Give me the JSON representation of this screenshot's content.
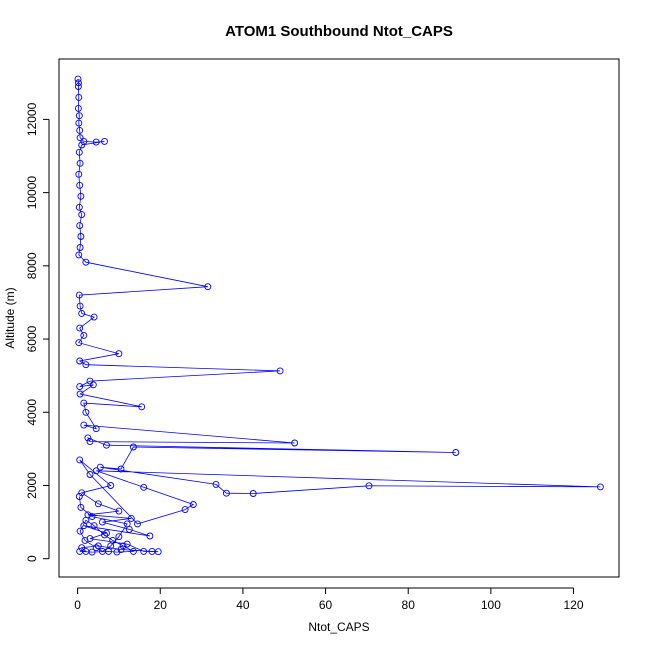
{
  "chart_data": {
    "type": "line",
    "title": "ATOM1 Southbound Ntot_CAPS",
    "xlabel": "Ntot_CAPS",
    "ylabel": "Altitude (m)",
    "xlim": [
      -4.5,
      131
    ],
    "ylim": [
      -500,
      13650
    ],
    "xticks": [
      0,
      20,
      40,
      60,
      80,
      100,
      120
    ],
    "yticks": [
      0,
      2000,
      4000,
      6000,
      8000,
      10000,
      12000
    ],
    "xtick_labels": [
      "0",
      "20",
      "40",
      "60",
      "80",
      "100",
      "120"
    ],
    "ytick_labels": [
      "0",
      "2000",
      "4000",
      "6000",
      "8000",
      "10000",
      "12000"
    ],
    "grid": false,
    "legend": false,
    "series": [
      {
        "color": "#0000ff",
        "marker": "open-circle",
        "points": [
          [
            0.1,
            13100
          ],
          [
            0.2,
            13000
          ],
          [
            0.2,
            12900
          ],
          [
            0.3,
            12600
          ],
          [
            0.2,
            12300
          ],
          [
            0.4,
            12100
          ],
          [
            0.3,
            11900
          ],
          [
            0.5,
            11700
          ],
          [
            0.6,
            11500
          ],
          [
            1.5,
            11400
          ],
          [
            4.5,
            11380
          ],
          [
            6.5,
            11400
          ],
          [
            1.0,
            11300
          ],
          [
            0.4,
            11100
          ],
          [
            0.6,
            10800
          ],
          [
            0.3,
            10500
          ],
          [
            0.5,
            10200
          ],
          [
            0.8,
            9900
          ],
          [
            0.4,
            9600
          ],
          [
            1.0,
            9400
          ],
          [
            0.5,
            9100
          ],
          [
            0.8,
            8800
          ],
          [
            0.6,
            8500
          ],
          [
            0.3,
            8300
          ],
          [
            2.0,
            8100
          ],
          [
            31.5,
            7430
          ],
          [
            0.4,
            7200
          ],
          [
            0.6,
            6900
          ],
          [
            1.0,
            6700
          ],
          [
            4.0,
            6600
          ],
          [
            0.5,
            6300
          ],
          [
            1.5,
            6100
          ],
          [
            0.3,
            5900
          ],
          [
            10.0,
            5600
          ],
          [
            0.5,
            5400
          ],
          [
            2.0,
            5300
          ],
          [
            49.0,
            5130
          ],
          [
            3.0,
            4850
          ],
          [
            0.5,
            4700
          ],
          [
            3.8,
            4750
          ],
          [
            0.6,
            4500
          ],
          [
            15.5,
            4150
          ],
          [
            1.5,
            4250
          ],
          [
            2.0,
            4000
          ],
          [
            4.5,
            3550
          ],
          [
            1.5,
            3650
          ],
          [
            52.5,
            3160
          ],
          [
            3.0,
            3200
          ],
          [
            2.5,
            3300
          ],
          [
            7.0,
            3100
          ],
          [
            91.5,
            2900
          ],
          [
            13.5,
            3050
          ],
          [
            10.5,
            2450
          ],
          [
            5.5,
            2500
          ],
          [
            33.5,
            2030
          ],
          [
            36.0,
            1790
          ],
          [
            42.5,
            1780
          ],
          [
            70.5,
            1990
          ],
          [
            126.5,
            1960
          ],
          [
            4.5,
            2400
          ],
          [
            16.0,
            1950
          ],
          [
            28.0,
            1480
          ],
          [
            26.0,
            1340
          ],
          [
            14.5,
            950
          ],
          [
            3.0,
            2300
          ],
          [
            0.5,
            2700
          ],
          [
            8.0,
            2000
          ],
          [
            1.0,
            1800
          ],
          [
            5.0,
            1500
          ],
          [
            10.0,
            1300
          ],
          [
            2.5,
            1200
          ],
          [
            13.0,
            1100
          ],
          [
            6.0,
            1000
          ],
          [
            12.5,
            800
          ],
          [
            17.5,
            620
          ],
          [
            1.5,
            900
          ],
          [
            7.0,
            700
          ],
          [
            3.0,
            550
          ],
          [
            12.0,
            400
          ],
          [
            16.0,
            200
          ],
          [
            19.5,
            190
          ],
          [
            18.0,
            200
          ],
          [
            10.5,
            250
          ],
          [
            5.0,
            350
          ],
          [
            1.0,
            300
          ],
          [
            2.0,
            200
          ],
          [
            0.5,
            200
          ],
          [
            3.5,
            180
          ],
          [
            7.5,
            200
          ],
          [
            9.5,
            180
          ],
          [
            13.5,
            200
          ],
          [
            11.0,
            350
          ],
          [
            8.5,
            500
          ],
          [
            6.5,
            650
          ],
          [
            4.0,
            900
          ],
          [
            2.0,
            1050
          ],
          [
            0.6,
            750
          ],
          [
            1.8,
            500
          ],
          [
            4.5,
            300
          ],
          [
            6.0,
            200
          ],
          [
            8.0,
            350
          ],
          [
            10.0,
            600
          ],
          [
            12.0,
            950
          ],
          [
            3.5,
            1150
          ],
          [
            0.8,
            1400
          ],
          [
            0.4,
            1700
          ]
        ]
      }
    ]
  }
}
